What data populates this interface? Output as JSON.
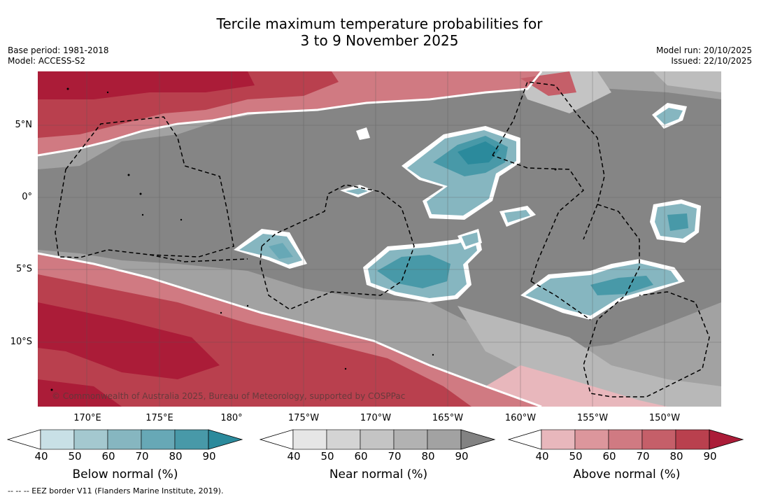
{
  "title": {
    "line1": "Tercile maximum temperature probabilities for",
    "line2": "3 to 9 November 2025"
  },
  "meta_left": {
    "base_period": "Base period: 1981-2018",
    "model": "Model: ACCESS-S2"
  },
  "meta_right": {
    "model_run": "Model run: 20/10/2025",
    "issued": "Issued: 22/10/2025"
  },
  "map": {
    "lat_labels": [
      "5°N",
      "0°",
      "5°S",
      "10°S"
    ],
    "lon_labels": [
      "170°E",
      "175°E",
      "180°",
      "175°W",
      "170°W",
      "165°W",
      "160°W",
      "155°W",
      "150°W"
    ],
    "copyright": "© Commonwealth of Australia 2025, Bureau of Meteorology, supported by COSPPac"
  },
  "colorbars": {
    "below": {
      "title": "Below normal (%)",
      "ticks": [
        "40",
        "50",
        "60",
        "70",
        "80",
        "90"
      ],
      "colors": [
        "#ffffff",
        "#c8e0e6",
        "#a4c8cf",
        "#86b6c0",
        "#67a8b6",
        "#4899a8",
        "#2b8a9c"
      ]
    },
    "near": {
      "title": "Near normal (%)",
      "ticks": [
        "40",
        "50",
        "60",
        "70",
        "80",
        "90"
      ],
      "colors": [
        "#ffffff",
        "#e6e6e6",
        "#d4d4d4",
        "#c4c4c4",
        "#b2b2b2",
        "#a2a2a2",
        "#828282"
      ]
    },
    "above": {
      "title": "Above normal (%)",
      "ticks": [
        "40",
        "50",
        "60",
        "70",
        "80",
        "90"
      ],
      "colors": [
        "#ffffff",
        "#e8b7bc",
        "#dc969c",
        "#d07a82",
        "#c55f69",
        "#b9404e",
        "#ab1c38"
      ]
    }
  },
  "footnote": "-- -- -- EEZ border V11 (Flanders Marine Institute, 2019)."
}
